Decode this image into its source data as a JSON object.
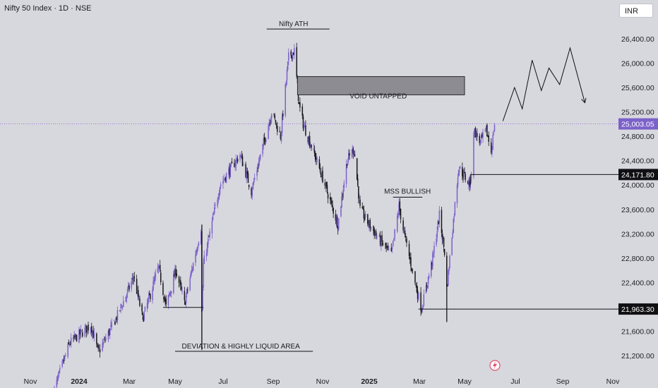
{
  "header": {
    "title": "Nifty 50 Index · 1D · NSE",
    "currency": "INR"
  },
  "colors": {
    "background": "#d7d7de",
    "candle_up": "#7b61c9",
    "candle_down": "#17171b",
    "last_price_tag": "#7b61c9",
    "level_tag": "#101014",
    "void_box": "#8c8c92"
  },
  "chart_data": {
    "type": "candlestick",
    "x": [
      "Nov",
      "2024",
      "Mar",
      "May",
      "Jul",
      "Sep",
      "Nov",
      "2025",
      "Mar",
      "May",
      "Jul",
      "Sep",
      "Nov"
    ],
    "y_ticks": [
      "26,400.00",
      "26,000.00",
      "25,600.00",
      "25,200.00",
      "24,800.00",
      "24,400.00",
      "24,000.00",
      "23,600.00",
      "23,200.00",
      "22,800.00",
      "22,400.00",
      "21,600.00",
      "21,200.00"
    ],
    "ylim": [
      21000,
      26800
    ],
    "last_price": "25,003.05",
    "levels": [
      {
        "label": "24,171.80",
        "value": 24171.8,
        "from": "2025-05-08"
      },
      {
        "label": "21,963.30",
        "value": 21963.3,
        "from": "2025-02-28"
      }
    ],
    "annotations": {
      "ath": "Nifty ATH",
      "void": "VOID UNTAPPED",
      "mss": "MSS BULLISH",
      "deviation": "DEVIATION & HIGHLY LIQUID AREA"
    },
    "price_path": [
      [
        "2023-11-30",
        20600
      ],
      [
        "2023-12-20",
        21400
      ],
      [
        "2024-01-15",
        21700
      ],
      [
        "2024-01-24",
        21250
      ],
      [
        "2024-02-14",
        21800
      ],
      [
        "2024-03-07",
        22500
      ],
      [
        "2024-03-19",
        21800
      ],
      [
        "2024-04-09",
        22650
      ],
      [
        "2024-04-19",
        22000
      ],
      [
        "2024-05-02",
        22600
      ],
      [
        "2024-05-13",
        22050
      ],
      [
        "2024-06-03",
        23300
      ],
      [
        "2024-06-04",
        21900
      ],
      [
        "2024-06-06",
        22700
      ],
      [
        "2024-06-27",
        24000
      ],
      [
        "2024-07-22",
        24500
      ],
      [
        "2024-08-05",
        23900
      ],
      [
        "2024-08-30",
        25200
      ],
      [
        "2024-09-10",
        24800
      ],
      [
        "2024-09-20",
        26100
      ],
      [
        "2024-09-27",
        26200
      ],
      [
        "2024-10-03",
        25300
      ],
      [
        "2024-10-08",
        25000
      ],
      [
        "2024-10-22",
        24500
      ],
      [
        "2024-11-04",
        24000
      ],
      [
        "2024-11-21",
        23350
      ],
      [
        "2024-12-03",
        24400
      ],
      [
        "2024-12-12",
        24600
      ],
      [
        "2024-12-20",
        23600
      ],
      [
        "2025-01-13",
        23100
      ],
      [
        "2025-01-27",
        22850
      ],
      [
        "2025-02-05",
        23650
      ],
      [
        "2025-02-11",
        23200
      ],
      [
        "2025-02-28",
        22150
      ],
      [
        "2025-03-04",
        21970
      ],
      [
        "2025-03-19",
        22800
      ],
      [
        "2025-03-28",
        23500
      ],
      [
        "2025-04-04",
        22900
      ],
      [
        "2025-04-07",
        22300
      ],
      [
        "2025-04-23",
        24300
      ],
      [
        "2025-05-08",
        24000
      ],
      [
        "2025-05-12",
        24900
      ],
      [
        "2025-05-20",
        24700
      ],
      [
        "2025-05-27",
        24900
      ],
      [
        "2025-06-02",
        24550
      ],
      [
        "2025-06-06",
        25003.05
      ]
    ],
    "projection": [
      [
        "2025-06-16",
        25050
      ],
      [
        "2025-06-30",
        25600
      ],
      [
        "2025-07-10",
        25250
      ],
      [
        "2025-07-23",
        26050
      ],
      [
        "2025-08-04",
        25550
      ],
      [
        "2025-08-14",
        25920
      ],
      [
        "2025-08-28",
        25650
      ],
      [
        "2025-09-10",
        26250
      ],
      [
        "2025-09-28",
        25350
      ]
    ]
  }
}
